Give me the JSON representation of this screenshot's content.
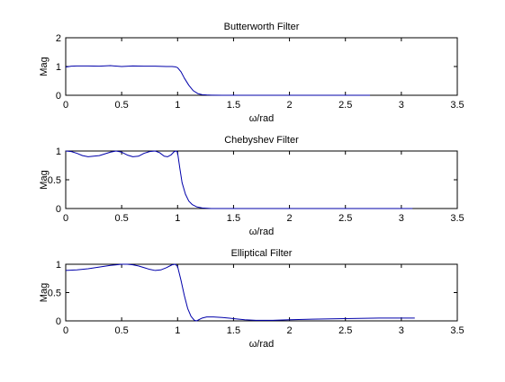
{
  "chart_data": [
    {
      "type": "line",
      "title": "Butterworth Filter",
      "xlabel": "ω/rad",
      "ylabel": "Mag",
      "xlim": [
        0,
        3.5
      ],
      "ylim": [
        0,
        2
      ],
      "xticks": [
        "0",
        "0.5",
        "1",
        "1.5",
        "2",
        "2.5",
        "3",
        "3.5"
      ],
      "yticks": [
        "0",
        "1",
        "2"
      ],
      "grid": false,
      "line_color": "#0000aa",
      "series": [
        {
          "x": [
            0,
            0.05,
            0.1,
            0.2,
            0.3,
            0.4,
            0.5,
            0.6,
            0.7,
            0.8,
            0.9,
            0.95,
            0.98,
            1.0,
            1.03,
            1.06,
            1.1,
            1.14,
            1.18,
            1.22,
            1.26,
            1.3,
            1.4,
            1.6,
            2.0,
            2.4,
            2.72
          ],
          "y": [
            0.98,
            1.01,
            1.02,
            1.02,
            1.01,
            1.03,
            1.0,
            1.02,
            1.01,
            1.01,
            1.0,
            1.0,
            0.99,
            0.96,
            0.82,
            0.6,
            0.35,
            0.16,
            0.06,
            0.02,
            0.01,
            0.005,
            0.0,
            0.0,
            0.0,
            0.0,
            0.0
          ]
        }
      ]
    },
    {
      "type": "line",
      "title": "Chebyshev Filter",
      "xlabel": "ω/rad",
      "ylabel": "Mag",
      "xlim": [
        0,
        3.5
      ],
      "ylim": [
        0,
        1
      ],
      "xticks": [
        "0",
        "0.5",
        "1",
        "1.5",
        "2",
        "2.5",
        "3",
        "3.5"
      ],
      "yticks": [
        "0",
        "0.5",
        "1"
      ],
      "grid": false,
      "line_color": "#0000aa",
      "series": [
        {
          "x": [
            0,
            0.05,
            0.1,
            0.15,
            0.2,
            0.3,
            0.4,
            0.45,
            0.5,
            0.55,
            0.6,
            0.65,
            0.7,
            0.75,
            0.8,
            0.84,
            0.88,
            0.91,
            0.94,
            0.97,
            0.99,
            1.0,
            1.02,
            1.04,
            1.07,
            1.1,
            1.13,
            1.17,
            1.22,
            1.3,
            1.5,
            2.0,
            2.5,
            3.1
          ],
          "y": [
            1.0,
            0.99,
            0.96,
            0.92,
            0.9,
            0.92,
            0.98,
            1.0,
            0.98,
            0.93,
            0.9,
            0.91,
            0.96,
            0.99,
            1.0,
            0.97,
            0.91,
            0.9,
            0.93,
            0.99,
            1.0,
            0.97,
            0.7,
            0.45,
            0.25,
            0.13,
            0.07,
            0.03,
            0.01,
            0.0,
            0.0,
            0.0,
            0.0,
            0.0
          ]
        }
      ]
    },
    {
      "type": "line",
      "title": "Elliptical Filter",
      "xlabel": "ω/rad",
      "ylabel": "Mag",
      "xlim": [
        0,
        3.5
      ],
      "ylim": [
        0,
        1
      ],
      "xticks": [
        "0",
        "0.5",
        "1",
        "1.5",
        "2",
        "2.5",
        "3",
        "3.5"
      ],
      "yticks": [
        "0",
        "0.5",
        "1"
      ],
      "grid": false,
      "line_color": "#0000aa",
      "series": [
        {
          "x": [
            0,
            0.1,
            0.2,
            0.3,
            0.4,
            0.5,
            0.55,
            0.6,
            0.65,
            0.7,
            0.75,
            0.8,
            0.85,
            0.9,
            0.95,
            0.98,
            1.0,
            1.03,
            1.06,
            1.09,
            1.12,
            1.15,
            1.17,
            1.19,
            1.22,
            1.26,
            1.32,
            1.4,
            1.5,
            1.6,
            1.7,
            1.85,
            2.0,
            2.2,
            2.5,
            2.8,
            3.12
          ],
          "y": [
            0.89,
            0.9,
            0.92,
            0.95,
            0.98,
            1.0,
            1.0,
            0.99,
            0.97,
            0.94,
            0.91,
            0.89,
            0.9,
            0.94,
            0.99,
            1.0,
            0.96,
            0.72,
            0.45,
            0.22,
            0.08,
            0.01,
            0.0,
            0.02,
            0.05,
            0.07,
            0.07,
            0.06,
            0.04,
            0.02,
            0.01,
            0.01,
            0.02,
            0.03,
            0.04,
            0.05,
            0.05
          ]
        }
      ]
    }
  ]
}
